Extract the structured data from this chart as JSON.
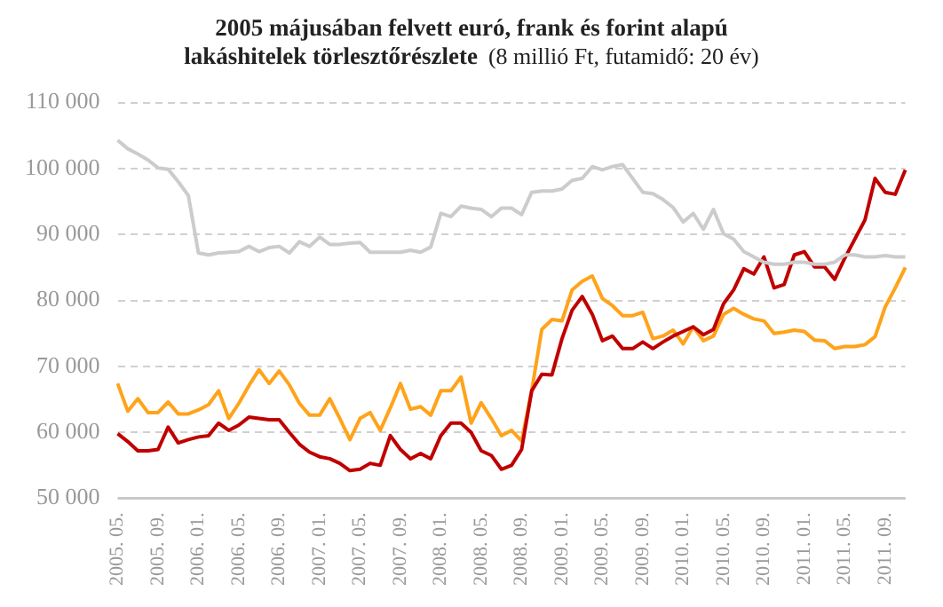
{
  "chart_data": {
    "type": "line",
    "title": "2005 májusában felvett euró, frank és forint alapú lakáshitelek törlesztőrészlete",
    "subtitle": "(8 millió Ft, futamidő: 20 év)",
    "categories": [
      "2005. 05.",
      null,
      null,
      null,
      "2005. 09.",
      null,
      null,
      null,
      "2006. 01.",
      null,
      null,
      null,
      "2006. 05.",
      null,
      null,
      null,
      "2006. 09.",
      null,
      null,
      null,
      "2007. 01.",
      null,
      null,
      null,
      "2007. 05.",
      null,
      null,
      null,
      "2007. 09.",
      null,
      null,
      null,
      "2008. 01.",
      null,
      null,
      null,
      "2008. 05.",
      null,
      null,
      null,
      "2008. 09.",
      null,
      null,
      null,
      "2009. 01.",
      null,
      null,
      null,
      "2009. 05.",
      null,
      null,
      null,
      "2009. 09.",
      null,
      null,
      null,
      "2010. 01.",
      null,
      null,
      null,
      "2010. 05.",
      null,
      null,
      null,
      "2010. 09.",
      null,
      null,
      null,
      "2011. 01.",
      null,
      null,
      null,
      "2011. 05.",
      null,
      null,
      null,
      "2011. 09.",
      null,
      null
    ],
    "series": [
      {
        "color": "#cccccc",
        "values": [
          104300,
          103000,
          102200,
          101300,
          100100,
          99900,
          98000,
          95900,
          87200,
          86900,
          87200,
          87300,
          87400,
          88200,
          87400,
          88000,
          88200,
          87200,
          88900,
          88200,
          89600,
          88500,
          88500,
          88700,
          88800,
          87300,
          87300,
          87300,
          87300,
          87600,
          87300,
          88100,
          93200,
          92700,
          94300,
          94000,
          93800,
          92700,
          94000,
          94000,
          93000,
          96400,
          96600,
          96600,
          96900,
          98200,
          98500,
          100300,
          99800,
          100300,
          100600,
          98500,
          96400,
          96200,
          95300,
          94100,
          91900,
          93200,
          90800,
          93800,
          90100,
          89300,
          87400,
          86600,
          85800,
          85500,
          85500,
          85800,
          85800,
          85500,
          85500,
          85800,
          86900,
          86900,
          86600,
          86600,
          86800,
          86600,
          86600
        ]
      },
      {
        "color": "#c00000",
        "values": [
          59800,
          58600,
          57200,
          57200,
          57400,
          60800,
          58400,
          58900,
          59300,
          59500,
          61400,
          60300,
          61100,
          62300,
          62100,
          61900,
          61900,
          60000,
          58200,
          57000,
          56300,
          56000,
          55300,
          54200,
          54400,
          55300,
          55000,
          59500,
          57400,
          56000,
          56800,
          56000,
          59500,
          61400,
          61400,
          60000,
          57200,
          56500,
          54400,
          55000,
          57400,
          66300,
          68800,
          68700,
          74200,
          78500,
          80600,
          77900,
          73900,
          74600,
          72700,
          72700,
          73700,
          72700,
          73700,
          74600,
          75300,
          76000,
          74800,
          75600,
          79500,
          81600,
          84800,
          84000,
          86600,
          81900,
          82400,
          86900,
          87400,
          85100,
          85100,
          83200,
          86400,
          89300,
          92200,
          98500,
          96400,
          96100,
          99800
        ]
      },
      {
        "color": "#ffa31a",
        "values": [
          67400,
          63200,
          65100,
          63000,
          63000,
          64600,
          62800,
          62800,
          63400,
          64200,
          66300,
          62100,
          64400,
          67100,
          69500,
          67400,
          69300,
          67200,
          64400,
          62600,
          62600,
          65100,
          62100,
          58900,
          62100,
          63000,
          60300,
          63700,
          67400,
          63500,
          63900,
          62600,
          66300,
          66300,
          68400,
          61400,
          64500,
          62100,
          59500,
          60300,
          58700,
          66300,
          75600,
          77100,
          76900,
          81600,
          82900,
          83700,
          80300,
          79200,
          77700,
          77700,
          78200,
          74200,
          74600,
          75500,
          73400,
          76000,
          73900,
          74600,
          77900,
          78800,
          77900,
          77200,
          76900,
          75000,
          75200,
          75500,
          75300,
          74000,
          73900,
          72700,
          73000,
          73000,
          73300,
          74500,
          79000,
          81900,
          85000
        ]
      }
    ],
    "ylim": [
      50000,
      110000
    ],
    "yticks": [
      {
        "value": 50000,
        "label": "50 000"
      },
      {
        "value": 60000,
        "label": "60 000"
      },
      {
        "value": 70000,
        "label": "70 000"
      },
      {
        "value": 80000,
        "label": "80 000"
      },
      {
        "value": 90000,
        "label": "90 000"
      },
      {
        "value": 100000,
        "label": "100 000"
      },
      {
        "value": 110000,
        "label": "110 000"
      }
    ],
    "grid": "y",
    "legend": false,
    "marker": "none",
    "line_style": "solid"
  }
}
